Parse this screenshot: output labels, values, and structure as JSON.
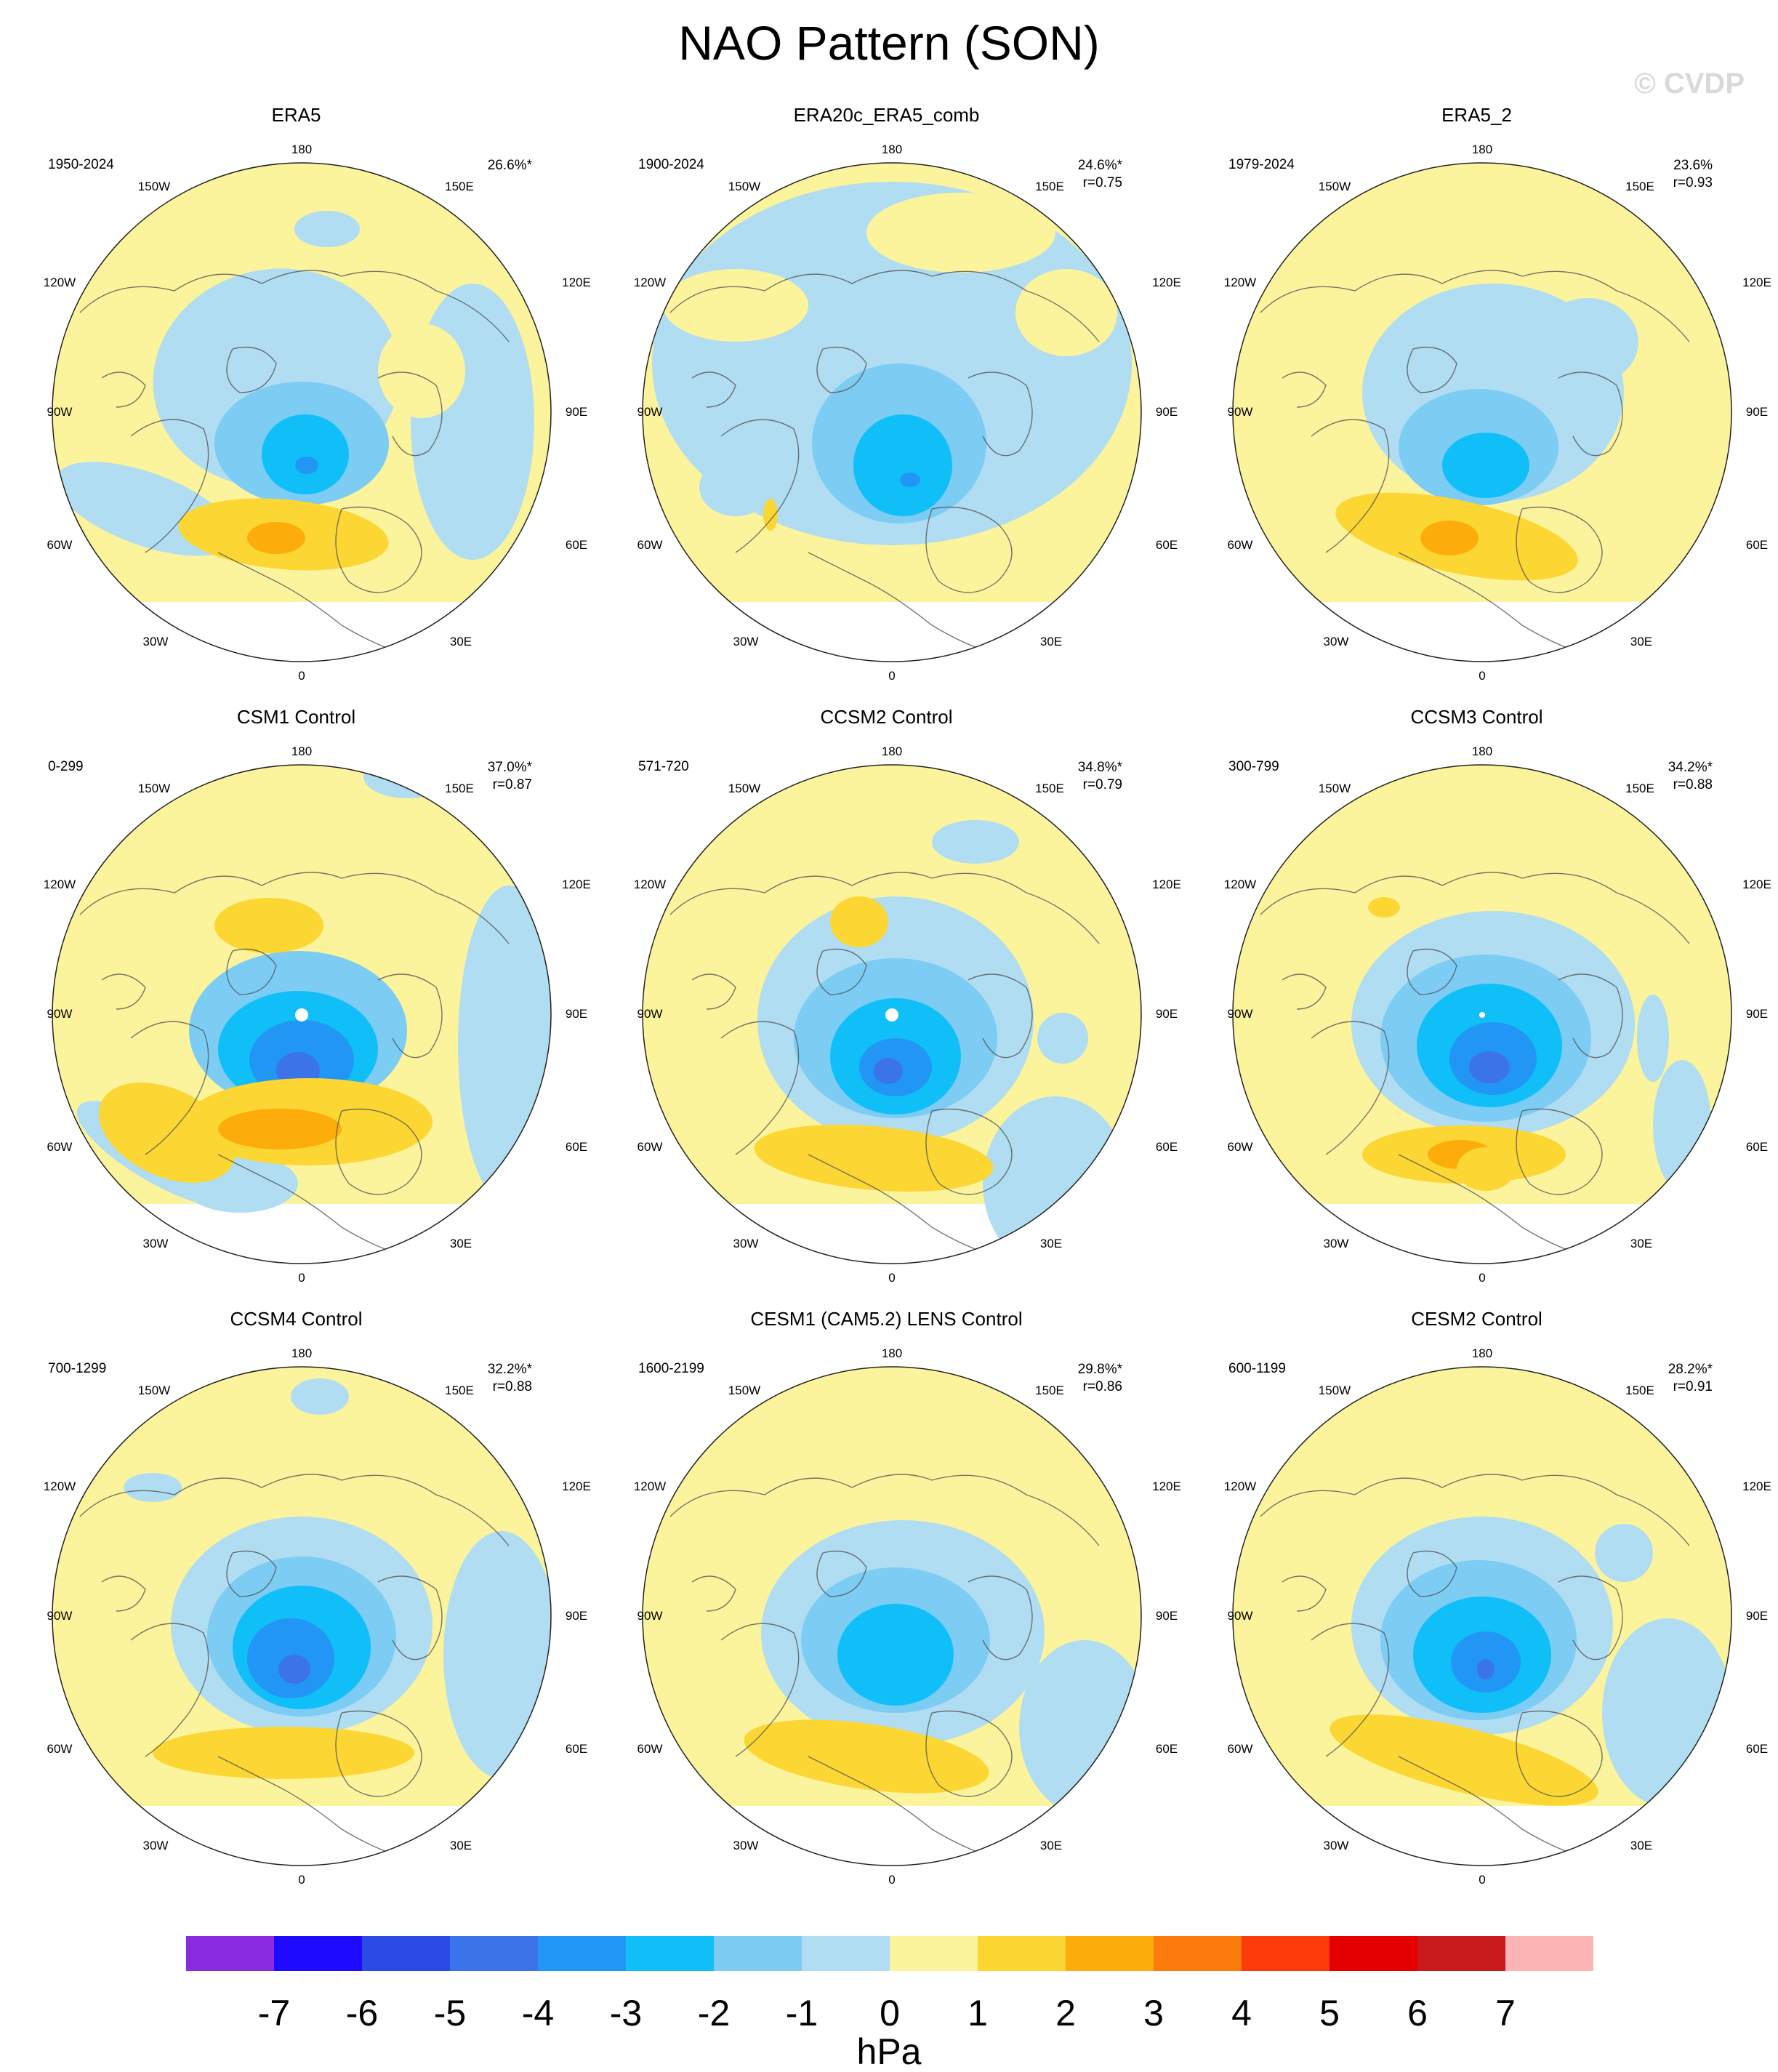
{
  "title": "NAO Pattern (SON)",
  "watermark": "© CVDP",
  "lon_labels": [
    "180",
    "150E",
    "120E",
    "90E",
    "60E",
    "30E",
    "0",
    "30W",
    "60W",
    "90W",
    "120W",
    "150W"
  ],
  "panels": [
    {
      "name": "ERA5",
      "years": "1950-2024",
      "pct": "26.6%*",
      "r": ""
    },
    {
      "name": "ERA20c_ERA5_comb",
      "years": "1900-2024",
      "pct": "24.6%*",
      "r": "r=0.75"
    },
    {
      "name": "ERA5_2",
      "years": "1979-2024",
      "pct": "23.6%",
      "r": "r=0.93"
    },
    {
      "name": "CSM1 Control",
      "years": "0-299",
      "pct": "37.0%*",
      "r": "r=0.87"
    },
    {
      "name": "CCSM2 Control",
      "years": "571-720",
      "pct": "34.8%*",
      "r": "r=0.79"
    },
    {
      "name": "CCSM3 Control",
      "years": "300-799",
      "pct": "34.2%*",
      "r": "r=0.88"
    },
    {
      "name": "CCSM4 Control",
      "years": "700-1299",
      "pct": "32.2%*",
      "r": "r=0.88"
    },
    {
      "name": "CESM1 (CAM5.2) LENS Control",
      "years": "1600-2199",
      "pct": "29.8%*",
      "r": "r=0.86"
    },
    {
      "name": "CESM2 Control",
      "years": "600-1199",
      "pct": "28.2%*",
      "r": "r=0.91"
    }
  ],
  "colorbar": {
    "colors": [
      "#8a2be2",
      "#1e0aff",
      "#2a4be6",
      "#3a74e8",
      "#2296f5",
      "#10bff7",
      "#7cccf4",
      "#b0ddf2",
      "#fcf49c",
      "#fcd632",
      "#fcad0c",
      "#fc7b0c",
      "#fc3a0a",
      "#e40000",
      "#c81a1a",
      "#fcb4b4"
    ],
    "ticks": [
      "-7",
      "-6",
      "-5",
      "-4",
      "-3",
      "-2",
      "-1",
      "0",
      "1",
      "2",
      "3",
      "4",
      "5",
      "6",
      "7"
    ],
    "unit": "hPa"
  }
}
